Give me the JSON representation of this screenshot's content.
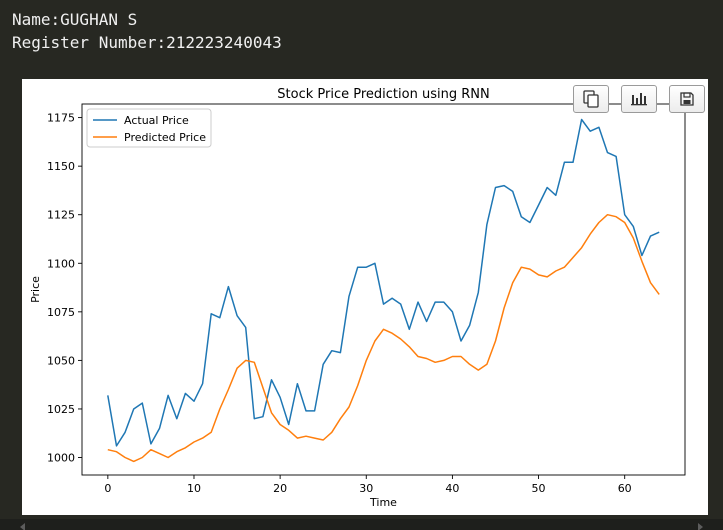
{
  "header": {
    "name_line": "Name:GUGHAN S",
    "register_line": "Register Number:212223240043"
  },
  "toolbar": {
    "buttons": [
      "copy-icon",
      "bar-chart-icon",
      "save-icon"
    ]
  },
  "chart_data": {
    "type": "line",
    "title": "Stock Price Prediction using RNN",
    "xlabel": "Time",
    "ylabel": "Price",
    "xlim": [
      -3,
      67
    ],
    "ylim": [
      991,
      1182
    ],
    "xticks": [
      0,
      10,
      20,
      30,
      40,
      50,
      60
    ],
    "yticks": [
      1000,
      1025,
      1050,
      1075,
      1100,
      1125,
      1150,
      1175
    ],
    "grid": false,
    "legend_position": "upper-left",
    "series": [
      {
        "name": "Actual Price",
        "color": "#1f77b4",
        "values": [
          1032,
          1006,
          1013,
          1025,
          1028,
          1007,
          1015,
          1032,
          1020,
          1033,
          1029,
          1038,
          1074,
          1072,
          1088,
          1073,
          1067,
          1020,
          1021,
          1040,
          1031,
          1017,
          1038,
          1024,
          1024,
          1048,
          1055,
          1054,
          1083,
          1098,
          1098,
          1100,
          1079,
          1082,
          1079,
          1066,
          1080,
          1070,
          1080,
          1080,
          1075,
          1060,
          1068,
          1085,
          1120,
          1139,
          1140,
          1137,
          1124,
          1121,
          1130,
          1139,
          1135,
          1152,
          1152,
          1174,
          1168,
          1170,
          1157,
          1155,
          1125,
          1119,
          1104,
          1114,
          1116
        ]
      },
      {
        "name": "Predicted Price",
        "color": "#ff7f0e",
        "values": [
          1004,
          1003,
          1000,
          998,
          1000,
          1004,
          1002,
          1000,
          1003,
          1005,
          1008,
          1010,
          1013,
          1025,
          1035,
          1046,
          1050,
          1049,
          1036,
          1023,
          1017,
          1014,
          1010,
          1011,
          1010,
          1009,
          1013,
          1020,
          1026,
          1037,
          1050,
          1060,
          1066,
          1064,
          1061,
          1057,
          1052,
          1051,
          1049,
          1050,
          1052,
          1052,
          1048,
          1045,
          1048,
          1060,
          1077,
          1090,
          1098,
          1097,
          1094,
          1093,
          1096,
          1098,
          1103,
          1108,
          1115,
          1121,
          1125,
          1124,
          1121,
          1113,
          1101,
          1090,
          1084
        ]
      }
    ]
  }
}
